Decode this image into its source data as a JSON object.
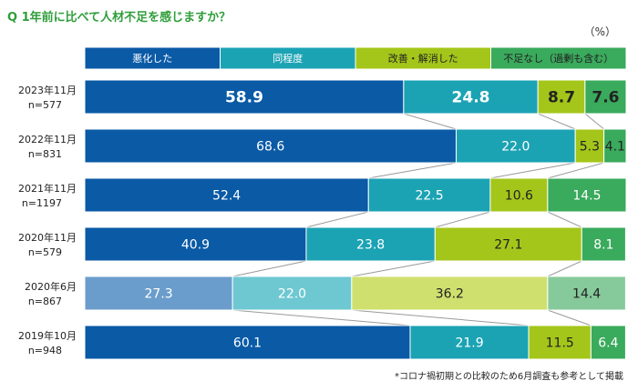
{
  "title": "Q 1年前に比べて人材不足を感じますか？",
  "unit_label": "（%）",
  "footnote": "*コロナ禍初期との比較のため6月調査も参考として掲載",
  "chart_data": {
    "type": "bar",
    "orientation": "horizontal",
    "stacked": true,
    "legend_position": "top",
    "legend": [
      "悪化した",
      "同程度",
      "改善・解消した",
      "不足なし（過剰も含む）"
    ],
    "colors": [
      "#0a5aa6",
      "#1ba3b4",
      "#a4c61a",
      "#3aaa5c"
    ],
    "highlight_colors": [
      "#6b9dcc",
      "#6ec8d2",
      "#cfe06e",
      "#86c99a"
    ],
    "categories": [
      {
        "date": "2023年11月",
        "n": "n=577"
      },
      {
        "date": "2022年11月",
        "n": "n=831"
      },
      {
        "date": "2021年11月",
        "n": "n=1197"
      },
      {
        "date": "2020年11月",
        "n": "n=579"
      },
      {
        "date": "2020年6月",
        "n": "n=867",
        "highlight": true
      },
      {
        "date": "2019年10月",
        "n": "n=948"
      }
    ],
    "series": [
      {
        "name": "悪化した",
        "values": [
          58.9,
          68.6,
          52.4,
          40.9,
          27.3,
          60.1
        ]
      },
      {
        "name": "同程度",
        "values": [
          24.8,
          22.0,
          22.5,
          23.8,
          22.0,
          21.9
        ]
      },
      {
        "name": "改善・解消した",
        "values": [
          8.7,
          5.3,
          10.6,
          27.1,
          36.2,
          11.5
        ]
      },
      {
        "name": "不足なし（過剰も含む）",
        "values": [
          7.6,
          4.1,
          14.5,
          8.1,
          14.4,
          6.4
        ]
      }
    ],
    "bold_row": 0
  }
}
